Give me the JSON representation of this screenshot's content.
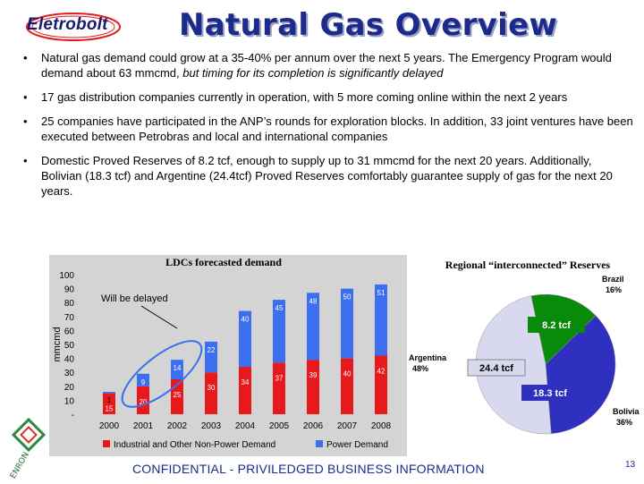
{
  "header": {
    "logo_text": "Eletrobolt",
    "title": "Natural Gas Overview"
  },
  "bullets": [
    {
      "text": "Natural gas demand could grow at a 35-40% per annum over the next 5 years.  The Emergency Program would demand about 63 mmcmd, ",
      "italic": "but timing for its completion is significantly delayed"
    },
    {
      "text": "17 gas distribution companies currently in operation, with 5 more coming online within the next 2 years"
    },
    {
      "text": "25 companies have participated in the ANP’s rounds for exploration blocks.  In addition, 33 joint ventures have been executed between Petrobras and local and international companies"
    },
    {
      "text": "Domestic Proved Reserves of 8.2 tcf, enough to supply up to 31 mmcmd for the next 20 years. Additionally, Bolivian (18.3 tcf) and Argentine (24.4tcf) Proved Reserves comfortably guarantee supply of gas for the next 20 years."
    }
  ],
  "chart_data": [
    {
      "type": "bar",
      "title": "LDCs forecasted demand",
      "ylabel": "mmcmd",
      "ylim": [
        0,
        100
      ],
      "yticks": [
        "100",
        "90",
        "80",
        "70",
        "60",
        "50",
        "40",
        "30",
        "20",
        "10",
        "-"
      ],
      "categories": [
        "2000",
        "2001",
        "2002",
        "2003",
        "2004",
        "2005",
        "2006",
        "2007",
        "2008"
      ],
      "series": [
        {
          "name": "Industrial and Other Non-Power Demand",
          "color": "#e8191c",
          "values": [
            15,
            20,
            25,
            30,
            34,
            37,
            39,
            40,
            42
          ],
          "labels": [
            "15",
            "20",
            "25",
            "30",
            "34",
            "37",
            "39",
            "40",
            "42"
          ]
        },
        {
          "name": "Power Demand",
          "color": "#3c6ff0",
          "values": [
            1,
            9,
            14,
            22,
            40,
            45,
            48,
            50,
            51
          ],
          "labels": [
            "1",
            "9",
            "14",
            "22",
            "40",
            "45",
            "48",
            "50",
            "51"
          ]
        }
      ],
      "annotation": "Will be delayed",
      "legend_position": "bottom"
    },
    {
      "type": "pie",
      "title": "Regional “interconnected” Reserves",
      "slices": [
        {
          "name": "Brazil",
          "pct_label": "16%",
          "value": 8.2,
          "value_label": "8.2 tcf",
          "color": "#0a8a0a"
        },
        {
          "name": "Bolivia",
          "pct_label": "36%",
          "value": 18.3,
          "value_label": "18.3 tcf",
          "color": "#3030c0"
        },
        {
          "name": "Argentina",
          "pct_label": "48%",
          "value": 24.4,
          "value_label": "24.4 tcf",
          "color": "#d8d8ee"
        }
      ]
    }
  ],
  "footer": {
    "confidential": "CONFIDENTIAL - PRIVILEDGED BUSINESS INFORMATION",
    "page_number": "13",
    "enron_logo_text": "ENRON"
  }
}
